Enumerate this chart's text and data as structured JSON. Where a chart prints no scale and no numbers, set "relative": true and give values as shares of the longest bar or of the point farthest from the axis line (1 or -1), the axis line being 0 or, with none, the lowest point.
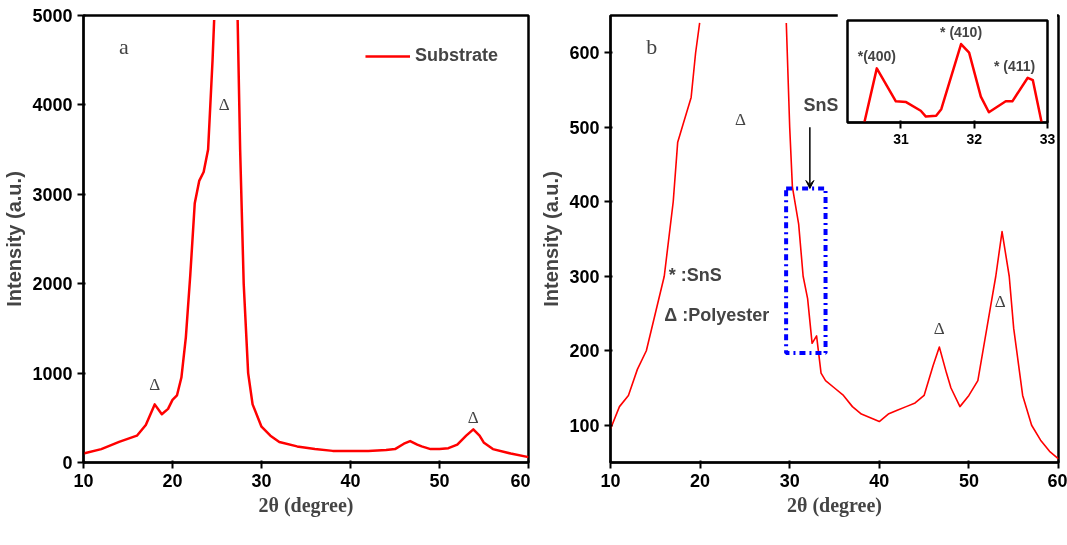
{
  "chart_data": [
    {
      "type": "line",
      "xlabel": "2θ (degree)",
      "ylabel": "Intensity (a.u.)",
      "xlim": [
        10,
        60
      ],
      "ylim": [
        0,
        5000
      ],
      "xticks": [
        10,
        20,
        30,
        40,
        50,
        60
      ],
      "yticks": [
        0,
        1000,
        2000,
        3000,
        4000,
        5000
      ],
      "legend": "top right",
      "grid": false,
      "x": [
        10,
        12,
        14,
        16,
        17,
        18,
        18.8,
        19.5,
        20,
        20.5,
        21,
        21.5,
        22,
        22.5,
        23,
        23.5,
        24,
        24.5,
        24.68,
        26,
        27.32,
        27.6,
        28,
        28.5,
        29,
        30,
        31,
        32,
        34,
        36,
        38,
        40,
        42,
        44,
        45,
        46,
        46.7,
        47.5,
        48,
        49,
        50,
        51,
        52,
        53,
        53.8,
        54.5,
        55,
        56,
        58,
        60
      ],
      "series": [
        {
          "name": "Substrate",
          "color": "#ff0000",
          "values": [
            100,
            150,
            230,
            300,
            420,
            650,
            540,
            600,
            700,
            750,
            950,
            1400,
            2100,
            2900,
            3150,
            3250,
            3500,
            4500,
            4950,
            null,
            4950,
            3500,
            2000,
            1000,
            650,
            400,
            300,
            230,
            180,
            150,
            130,
            130,
            130,
            140,
            150,
            210,
            240,
            200,
            180,
            150,
            150,
            160,
            200,
            300,
            370,
            300,
            220,
            150,
            100,
            60
          ]
        }
      ],
      "annotations": [
        "a",
        "Δ",
        "Δ",
        "Δ"
      ]
    },
    {
      "type": "line",
      "xlabel": "2θ (degree)",
      "ylabel": "Intensity (a.u.)",
      "xlim": [
        10,
        60
      ],
      "ylim": [
        50,
        650
      ],
      "xticks": [
        10,
        20,
        30,
        40,
        50,
        60
      ],
      "yticks": [
        100,
        200,
        300,
        400,
        500,
        600
      ],
      "grid": false,
      "x": [
        10,
        11,
        12,
        13,
        14,
        15,
        16,
        17,
        17.5,
        18,
        19,
        19.5,
        19.95,
        25,
        29.62,
        30,
        30.3,
        31,
        31.5,
        32,
        32.5,
        33,
        33.5,
        34,
        35,
        36,
        37,
        38,
        39,
        40,
        41,
        42,
        43,
        44,
        45,
        46,
        46.7,
        47.5,
        48,
        49,
        50,
        51,
        52,
        53,
        53.7,
        54.5,
        55,
        56,
        57,
        58,
        59,
        60
      ],
      "series": [
        {
          "color": "#ff0000",
          "values": [
            95,
            125,
            140,
            175,
            200,
            250,
            300,
            400,
            480,
            500,
            540,
            600,
            640,
            null,
            640,
            500,
            420,
            370,
            300,
            270,
            210,
            220,
            170,
            160,
            150,
            140,
            125,
            115,
            110,
            105,
            115,
            120,
            125,
            130,
            140,
            180,
            205,
            170,
            150,
            125,
            140,
            160,
            230,
            300,
            360,
            300,
            230,
            140,
            100,
            80,
            65,
            55
          ]
        }
      ],
      "annotations": [
        "b",
        "* :SnS",
        "Δ :Polyester",
        "SnS",
        "Δ",
        "Δ",
        "Δ"
      ]
    },
    {
      "type": "line",
      "relative": true,
      "xlim": [
        30.27,
        33.0
      ],
      "xticks": [
        31,
        32,
        33
      ],
      "grid": false,
      "x": [
        30.5,
        30.67,
        30.93,
        31.07,
        31.27,
        31.34,
        31.48,
        31.55,
        31.82,
        31.93,
        32.09,
        32.2,
        32.43,
        32.52,
        32.73,
        32.8,
        32.92
      ],
      "series": [
        {
          "color": "#ff0000",
          "values": [
            0,
            0.69,
            0.27,
            0.26,
            0.15,
            0.075,
            0.087,
            0.17,
            1.0,
            0.89,
            0.33,
            0.13,
            0.27,
            0.27,
            0.57,
            0.54,
            0
          ]
        }
      ],
      "annotations": [
        {
          "text": "*(400)",
          "x": 30.67,
          "y": 0.69
        },
        {
          "text": "* (410)",
          "x": 31.82,
          "y": 1.0
        },
        {
          "text": "* (411)",
          "x": 32.75,
          "y": 0.57
        }
      ]
    }
  ]
}
